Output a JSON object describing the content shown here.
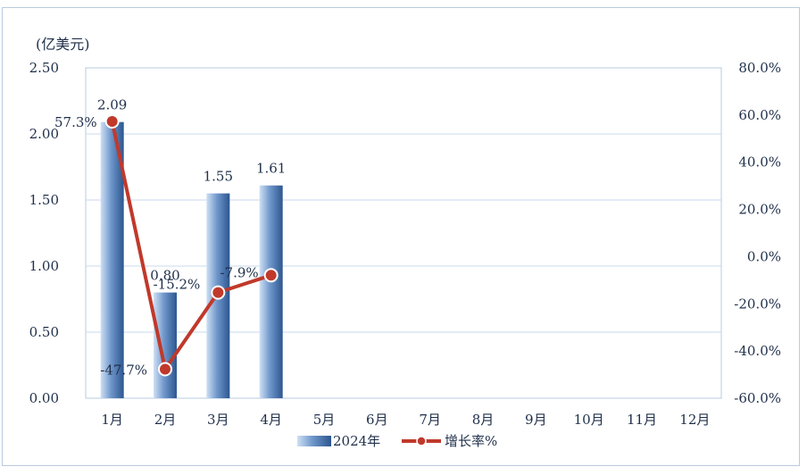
{
  "chart_data": {
    "type": "bar+line",
    "unit_label": "(亿美元)",
    "categories": [
      "1月",
      "2月",
      "3月",
      "4月",
      "5月",
      "6月",
      "7月",
      "8月",
      "9月",
      "10月",
      "11月",
      "12月"
    ],
    "series": [
      {
        "name": "2024年",
        "type": "bar",
        "axis": "left",
        "values": [
          2.09,
          0.8,
          1.55,
          1.61,
          null,
          null,
          null,
          null,
          null,
          null,
          null,
          null
        ],
        "labels": [
          "2.09",
          "0.80",
          "1.55",
          "1.61"
        ]
      },
      {
        "name": "增长率%",
        "type": "line",
        "axis": "right",
        "values": [
          57.3,
          -47.7,
          -15.2,
          -7.9,
          null,
          null,
          null,
          null,
          null,
          null,
          null,
          null
        ],
        "labels": [
          "57.3%",
          "-47.7%",
          "-15.2%",
          "-7.9%"
        ]
      }
    ],
    "left_axis": {
      "min": 0,
      "max": 2.5,
      "ticks": [
        "0.00",
        "0.50",
        "1.00",
        "1.50",
        "2.00",
        "2.50"
      ]
    },
    "right_axis": {
      "min": -60,
      "max": 80,
      "ticks": [
        "-60.0%",
        "-40.0%",
        "-20.0%",
        "0.0%",
        "20.0%",
        "40.0%",
        "60.0%",
        "80.0%"
      ]
    },
    "grid": true,
    "legend_position": "bottom",
    "colors": {
      "bar": "#3f6fae",
      "bar_light": "#c9daf0",
      "line": "#c0392b",
      "grid": "#c9daee",
      "plot_border": "#b9cbe0"
    }
  }
}
